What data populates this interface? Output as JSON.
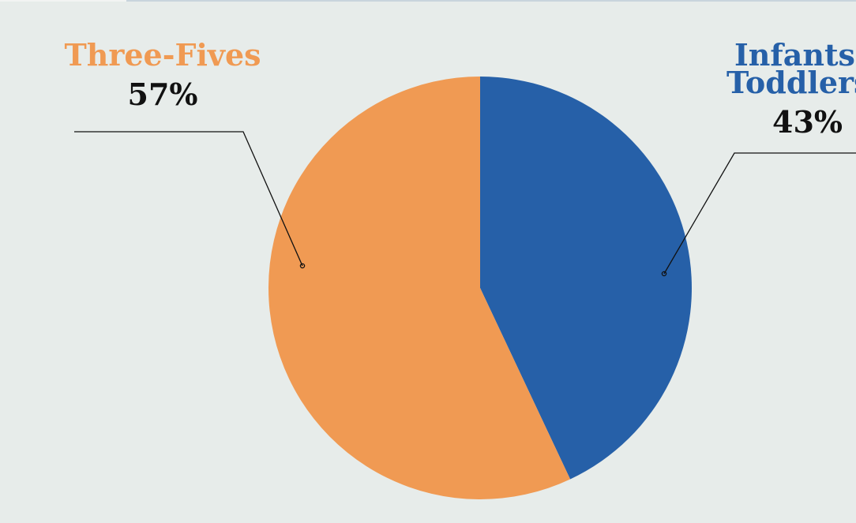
{
  "chart_data": {
    "type": "pie",
    "slices": [
      {
        "label": "Infants Toddlers",
        "label_lines": [
          "Infants",
          "Toddlers"
        ],
        "value": 43,
        "value_label": "43%",
        "color": "#2660a8"
      },
      {
        "label": "Three-Fives",
        "label_lines": [
          "Three-Fives"
        ],
        "value": 57,
        "value_label": "57%",
        "color": "#f09a53"
      }
    ],
    "start": "12 o'clock",
    "direction": "clockwise",
    "legend": "none",
    "label_placement": "outside with leader lines"
  }
}
